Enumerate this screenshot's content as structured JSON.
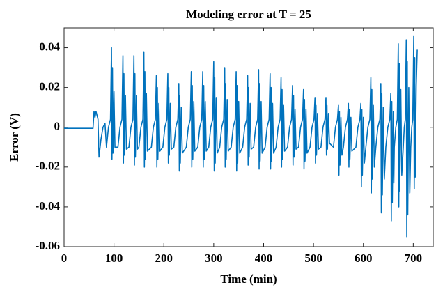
{
  "chart_data": {
    "type": "line",
    "title": "Modeling error at T = 25",
    "xlabel": "Time (min)",
    "ylabel": "Error (V)",
    "color": "#0072BD",
    "xlim": [
      0,
      740
    ],
    "ylim": [
      -0.06,
      0.05
    ],
    "xticks": [
      0,
      100,
      200,
      300,
      400,
      500,
      600,
      700
    ],
    "yticks": [
      -0.06,
      -0.04,
      -0.02,
      0,
      0.02,
      0.04
    ],
    "grid": false,
    "x": [
      0,
      30,
      58,
      60,
      62,
      64,
      66,
      68,
      70,
      74,
      78,
      82,
      85,
      89,
      93,
      95,
      96,
      97,
      98,
      100,
      102,
      108,
      112,
      116,
      118,
      119,
      120,
      121,
      123,
      125,
      130,
      134,
      138,
      140,
      141,
      142,
      143,
      145,
      147,
      150,
      154,
      158,
      160,
      161,
      162,
      163,
      165,
      167,
      175,
      179,
      183,
      185,
      186,
      187,
      188,
      190,
      192,
      198,
      202,
      206,
      208,
      209,
      210,
      211,
      213,
      215,
      220,
      224,
      228,
      230,
      231,
      232,
      233,
      235,
      237,
      245,
      249,
      253,
      255,
      256,
      257,
      258,
      260,
      262,
      268,
      272,
      276,
      278,
      279,
      280,
      281,
      283,
      285,
      290,
      294,
      298,
      300,
      301,
      302,
      303,
      305,
      307,
      312,
      316,
      320,
      322,
      323,
      324,
      325,
      327,
      329,
      335,
      339,
      343,
      345,
      346,
      347,
      348,
      350,
      352,
      358,
      362,
      366,
      368,
      369,
      370,
      371,
      373,
      375,
      380,
      384,
      388,
      390,
      391,
      392,
      393,
      395,
      397,
      403,
      407,
      411,
      413,
      414,
      415,
      416,
      418,
      420,
      425,
      429,
      433,
      435,
      436,
      437,
      438,
      440,
      442,
      448,
      452,
      456,
      458,
      459,
      460,
      461,
      463,
      465,
      470,
      474,
      478,
      480,
      481,
      482,
      483,
      485,
      487,
      493,
      497,
      501,
      503,
      504,
      505,
      506,
      508,
      510,
      515,
      519,
      523,
      525,
      526,
      527,
      528,
      530,
      532,
      540,
      544,
      548,
      550,
      551,
      552,
      553,
      555,
      557,
      560,
      564,
      568,
      570,
      571,
      572,
      573,
      575,
      577,
      585,
      589,
      593,
      595,
      596,
      597,
      598,
      600,
      602,
      605,
      609,
      613,
      615,
      616,
      617,
      618,
      620,
      622,
      625,
      629,
      633,
      635,
      636,
      637,
      638,
      640,
      642,
      645,
      649,
      653,
      655,
      656,
      657,
      658,
      660,
      661,
      662,
      665,
      668,
      670,
      671,
      672,
      673,
      675,
      677,
      680,
      682,
      684,
      686,
      687,
      688,
      689,
      691,
      693,
      695,
      697,
      699,
      701,
      702,
      703,
      704,
      706,
      708
    ],
    "values": [
      -0.0005,
      -0.0005,
      -0.0005,
      0.008,
      0.005,
      0.008,
      0.006,
      0.004,
      -0.015,
      -0.006,
      0.0,
      0.002,
      -0.01,
      0,
      0.004,
      0.04,
      -0.016,
      0.03,
      -0.013,
      0.018,
      -0.01,
      -0.01,
      0,
      0.004,
      0.036,
      -0.018,
      0.027,
      -0.014,
      0.016,
      -0.011,
      -0.01,
      0,
      0.004,
      0.036,
      -0.019,
      0.027,
      -0.015,
      0.016,
      -0.011,
      -0.01,
      0,
      0.004,
      0.038,
      -0.02,
      0.028,
      -0.016,
      0.017,
      -0.012,
      -0.01,
      0,
      0.004,
      0.026,
      -0.02,
      0.02,
      -0.016,
      0.012,
      -0.012,
      -0.01,
      0,
      0.004,
      0.027,
      -0.018,
      0.02,
      -0.014,
      0.012,
      -0.011,
      -0.01,
      0,
      0.004,
      0.022,
      -0.022,
      0.016,
      -0.018,
      0.01,
      -0.013,
      -0.01,
      0,
      0.004,
      0.028,
      -0.02,
      0.021,
      -0.016,
      0.013,
      -0.012,
      -0.01,
      0,
      0.004,
      0.028,
      -0.02,
      0.021,
      -0.016,
      0.013,
      -0.012,
      -0.01,
      0,
      0.004,
      0.033,
      -0.022,
      0.025,
      -0.018,
      0.015,
      -0.013,
      -0.01,
      0,
      0.004,
      0.03,
      -0.02,
      0.022,
      -0.016,
      0.014,
      -0.012,
      -0.01,
      0,
      0.004,
      0.028,
      -0.022,
      0.021,
      -0.018,
      0.013,
      -0.013,
      -0.01,
      0,
      0.004,
      0.026,
      -0.019,
      0.02,
      -0.015,
      0.012,
      -0.011,
      -0.01,
      0,
      0.004,
      0.029,
      -0.021,
      0.022,
      -0.017,
      0.013,
      -0.013,
      -0.01,
      0,
      0.004,
      0.027,
      -0.021,
      0.02,
      -0.017,
      0.012,
      -0.013,
      -0.01,
      0,
      0.004,
      0.025,
      -0.02,
      0.019,
      -0.016,
      0.011,
      -0.012,
      -0.01,
      0,
      0.004,
      0.021,
      -0.019,
      0.016,
      -0.015,
      0.009,
      -0.011,
      -0.01,
      0,
      0.004,
      0.019,
      -0.021,
      0.014,
      -0.017,
      0.009,
      -0.013,
      -0.01,
      0,
      0.004,
      0.015,
      -0.018,
      0.011,
      -0.014,
      0.007,
      -0.011,
      -0.01,
      0,
      0.004,
      0.015,
      -0.014,
      0.011,
      -0.011,
      0.007,
      -0.008,
      -0.01,
      0,
      0.004,
      0.011,
      -0.024,
      0.008,
      -0.019,
      0.005,
      -0.014,
      -0.01,
      0,
      0.004,
      0.012,
      -0.02,
      0.009,
      -0.016,
      0.005,
      -0.012,
      -0.01,
      0,
      0.004,
      0.012,
      -0.03,
      0.009,
      -0.024,
      0.005,
      -0.018,
      -0.01,
      0,
      0.004,
      0.025,
      -0.033,
      0.019,
      -0.026,
      0.011,
      -0.02,
      -0.01,
      0,
      0.004,
      0.022,
      -0.043,
      0.017,
      -0.034,
      0.01,
      -0.026,
      -0.01,
      0,
      0.004,
      0.017,
      -0.047,
      0.013,
      -0.038,
      0.008,
      -0.028,
      -0.01,
      0,
      0.004,
      0.042,
      -0.04,
      0.032,
      -0.032,
      0.019,
      -0.024,
      -0.01,
      0,
      0.004,
      0.044,
      -0.055,
      0.033,
      -0.044,
      0.02,
      -0.033,
      -0.01,
      0,
      0.004,
      0.046,
      -0.031,
      0.035,
      -0.025,
      0.021,
      0.039
    ]
  }
}
